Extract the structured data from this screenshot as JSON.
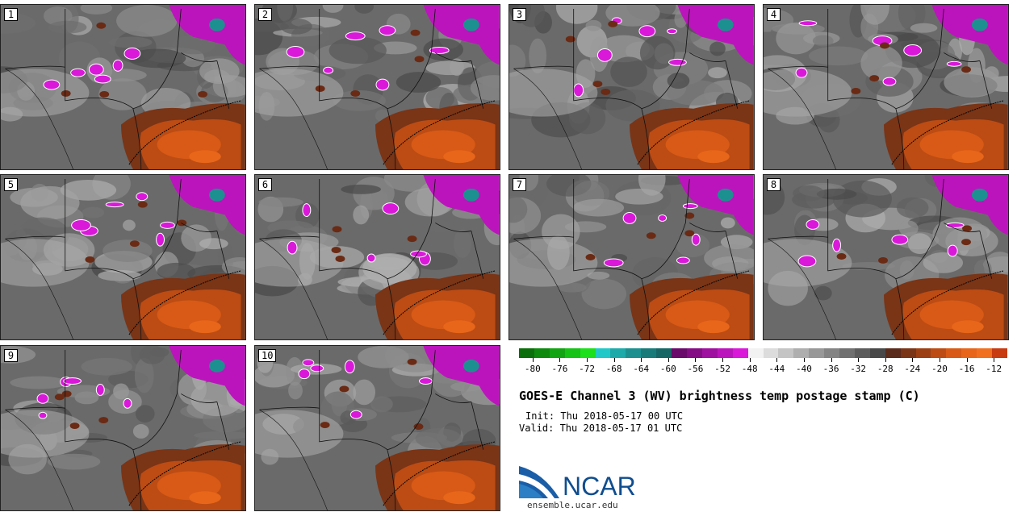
{
  "panels": [
    {
      "label": "1"
    },
    {
      "label": "2"
    },
    {
      "label": "3"
    },
    {
      "label": "4"
    },
    {
      "label": "5"
    },
    {
      "label": "6"
    },
    {
      "label": "7"
    },
    {
      "label": "8"
    },
    {
      "label": "9"
    },
    {
      "label": "10"
    }
  ],
  "colorbar": {
    "colors": [
      "#0a6e0a",
      "#0d8a0d",
      "#12a412",
      "#17c217",
      "#1ce01c",
      "#22c8c8",
      "#1faaaa",
      "#1c9090",
      "#197a7a",
      "#166666",
      "#6a0a6a",
      "#840c84",
      "#a010a0",
      "#bc14bc",
      "#da18da",
      "#f2f2f2",
      "#dcdcdc",
      "#c4c4c4",
      "#aeaeae",
      "#989898",
      "#848484",
      "#707070",
      "#5c5c5c",
      "#484848",
      "#5a2a1a",
      "#7a3416",
      "#9c4014",
      "#bc4c14",
      "#d85a16",
      "#e8661a",
      "#f07020",
      "#c83a10"
    ],
    "tick_values": [
      "-80",
      "-76",
      "-72",
      "-68",
      "-64",
      "-60",
      "-56",
      "-52",
      "-48",
      "-44",
      "-40",
      "-36",
      "-32",
      "-28",
      "-24",
      "-20",
      "-16",
      "-12"
    ]
  },
  "title": "GOES-E Channel 3 (WV) brightness temp postage stamp (C)",
  "init": "Init: Thu 2018-05-17 00 UTC",
  "valid": "Valid: Thu 2018-05-17 01 UTC",
  "logo_text": "NCAR",
  "url": "ensemble.ucar.edu"
}
